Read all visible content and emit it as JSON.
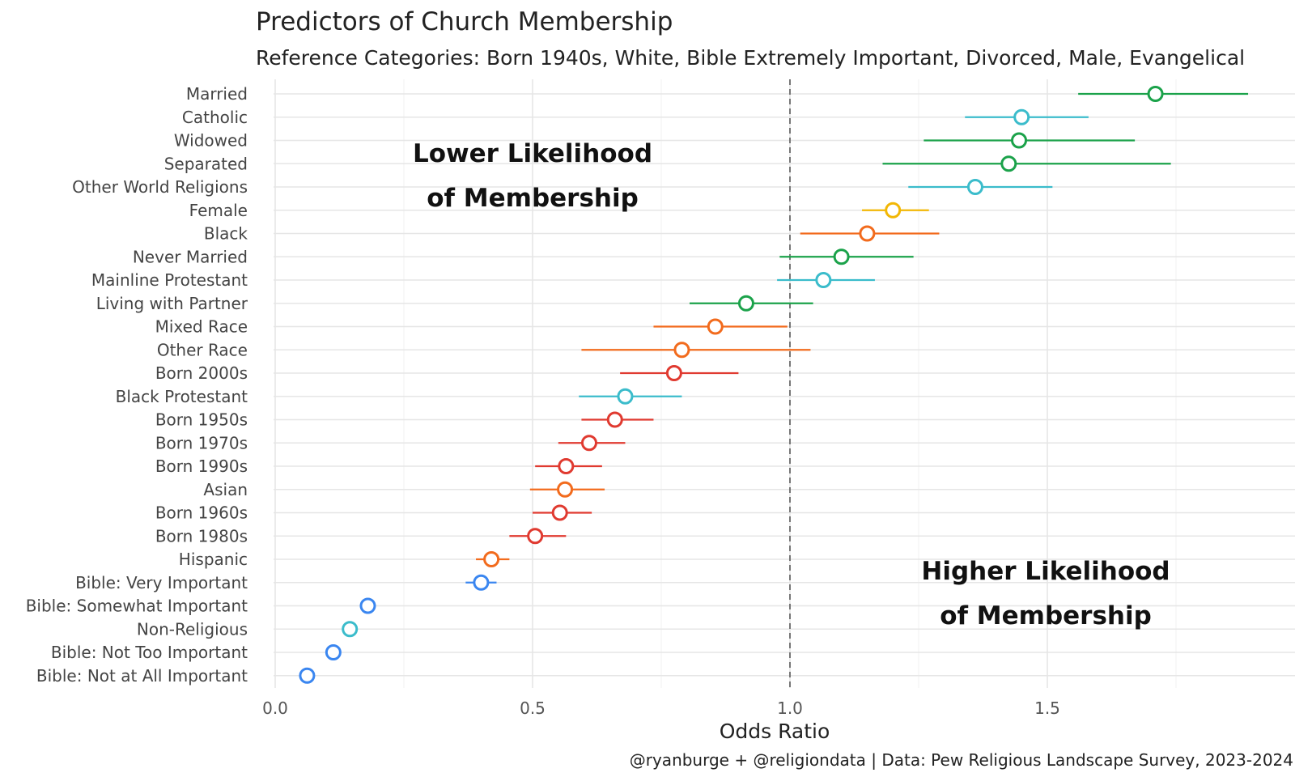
{
  "chart_data": {
    "type": "scatter",
    "title": "Predictors of Church Membership",
    "subtitle": "Reference Categories: Born 1940s, White, Bible Extremely Important, Divorced, Male, Evangelical",
    "xlabel": "Odds Ratio",
    "ylabel": "",
    "caption": "@ryanburge + @religiondata | Data: Pew Religious Landscape Survey, 2023-2024",
    "xlim": [
      0.0,
      1.95
    ],
    "xticks": [
      0.0,
      0.5,
      1.0,
      1.5
    ],
    "xtick_labels": [
      "0.0",
      "0.5",
      "1.0",
      "1.5"
    ],
    "reference_line": 1.0,
    "annotations": {
      "lower": [
        "Lower Likelihood",
        "of Membership"
      ],
      "higher": [
        "Higher Likelihood",
        "of Membership"
      ]
    },
    "group_colors": {
      "marital": "#1ba24a",
      "religion": "#3bbccb",
      "gender": "#f2b705",
      "race": "#f26b1d",
      "generation": "#e03a30",
      "bible": "#3a86f0"
    },
    "points": [
      {
        "label": "Married",
        "group": "marital",
        "or": 1.71,
        "lo": 1.56,
        "hi": 1.89
      },
      {
        "label": "Catholic",
        "group": "religion",
        "or": 1.45,
        "lo": 1.34,
        "hi": 1.58
      },
      {
        "label": "Widowed",
        "group": "marital",
        "or": 1.445,
        "lo": 1.26,
        "hi": 1.67
      },
      {
        "label": "Separated",
        "group": "marital",
        "or": 1.425,
        "lo": 1.18,
        "hi": 1.74
      },
      {
        "label": "Other World Religions",
        "group": "religion",
        "or": 1.36,
        "lo": 1.23,
        "hi": 1.51
      },
      {
        "label": "Female",
        "group": "gender",
        "or": 1.2,
        "lo": 1.14,
        "hi": 1.27
      },
      {
        "label": "Black",
        "group": "race",
        "or": 1.15,
        "lo": 1.02,
        "hi": 1.29
      },
      {
        "label": "Never Married",
        "group": "marital",
        "or": 1.1,
        "lo": 0.98,
        "hi": 1.24
      },
      {
        "label": "Mainline Protestant",
        "group": "religion",
        "or": 1.065,
        "lo": 0.975,
        "hi": 1.165
      },
      {
        "label": "Living with Partner",
        "group": "marital",
        "or": 0.915,
        "lo": 0.805,
        "hi": 1.045
      },
      {
        "label": "Mixed Race",
        "group": "race",
        "or": 0.855,
        "lo": 0.735,
        "hi": 0.995
      },
      {
        "label": "Other Race",
        "group": "race",
        "or": 0.79,
        "lo": 0.595,
        "hi": 1.04
      },
      {
        "label": "Born 2000s",
        "group": "generation",
        "or": 0.775,
        "lo": 0.67,
        "hi": 0.9
      },
      {
        "label": "Black Protestant",
        "group": "religion",
        "or": 0.68,
        "lo": 0.59,
        "hi": 0.79
      },
      {
        "label": "Born 1950s",
        "group": "generation",
        "or": 0.66,
        "lo": 0.595,
        "hi": 0.735
      },
      {
        "label": "Born 1970s",
        "group": "generation",
        "or": 0.61,
        "lo": 0.55,
        "hi": 0.68
      },
      {
        "label": "Born 1990s",
        "group": "generation",
        "or": 0.565,
        "lo": 0.505,
        "hi": 0.635
      },
      {
        "label": "Asian",
        "group": "race",
        "or": 0.563,
        "lo": 0.495,
        "hi": 0.64
      },
      {
        "label": "Born 1960s",
        "group": "generation",
        "or": 0.553,
        "lo": 0.5,
        "hi": 0.615
      },
      {
        "label": "Born 1980s",
        "group": "generation",
        "or": 0.505,
        "lo": 0.455,
        "hi": 0.565
      },
      {
        "label": "Hispanic",
        "group": "race",
        "or": 0.42,
        "lo": 0.39,
        "hi": 0.455
      },
      {
        "label": "Bible: Very Important",
        "group": "bible",
        "or": 0.4,
        "lo": 0.37,
        "hi": 0.43
      },
      {
        "label": "Bible: Somewhat Important",
        "group": "bible",
        "or": 0.18,
        "lo": 0.18,
        "hi": 0.18
      },
      {
        "label": "Non-Religious",
        "group": "religion",
        "or": 0.145,
        "lo": 0.145,
        "hi": 0.145
      },
      {
        "label": "Bible: Not Too Important",
        "group": "bible",
        "or": 0.113,
        "lo": 0.113,
        "hi": 0.113
      },
      {
        "label": "Bible: Not at All Important",
        "group": "bible",
        "or": 0.062,
        "lo": 0.062,
        "hi": 0.062
      }
    ]
  }
}
